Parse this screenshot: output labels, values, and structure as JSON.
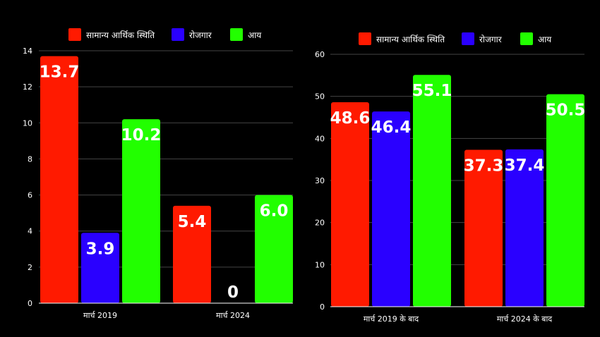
{
  "colors": {
    "background": "#000000",
    "grid": "#444444",
    "axis": "#ffffff",
    "text": "#ffffff"
  },
  "chart_data": [
    {
      "type": "bar",
      "categories": [
        "मार्च 2019",
        "मार्च 2024"
      ],
      "series": [
        {
          "name": "सामान्य आर्थिक स्थिति",
          "color": "#ff1a00",
          "values": [
            13.7,
            5.4
          ],
          "labels": [
            "13.7",
            "5.4"
          ]
        },
        {
          "name": "रोजगार",
          "color": "#2a00ff",
          "values": [
            3.9,
            0
          ],
          "labels": [
            "3.9",
            "0"
          ]
        },
        {
          "name": "आय",
          "color": "#22ff00",
          "values": [
            10.2,
            6.0
          ],
          "labels": [
            "10.2",
            "6.0"
          ]
        }
      ],
      "ylim": [
        0,
        14
      ],
      "yticks": [
        0,
        2,
        4,
        6,
        8,
        10,
        12,
        14
      ],
      "grid": true,
      "legend": "top"
    },
    {
      "type": "bar",
      "categories": [
        "मार्च 2019 के बाद",
        "मार्च 2024 के बाद"
      ],
      "series": [
        {
          "name": "सामान्य आर्थिक स्थिति",
          "color": "#ff1a00",
          "values": [
            48.6,
            37.3
          ],
          "labels": [
            "48.6",
            "37.3"
          ]
        },
        {
          "name": "रोजगार",
          "color": "#2a00ff",
          "values": [
            46.4,
            37.4
          ],
          "labels": [
            "46.4",
            "37.4"
          ]
        },
        {
          "name": "आय",
          "color": "#22ff00",
          "values": [
            55.1,
            50.5
          ],
          "labels": [
            "55.1",
            "50.5"
          ]
        }
      ],
      "ylim": [
        0,
        60
      ],
      "yticks": [
        0,
        10,
        20,
        30,
        40,
        50,
        60
      ],
      "grid": true,
      "legend": "top"
    }
  ]
}
